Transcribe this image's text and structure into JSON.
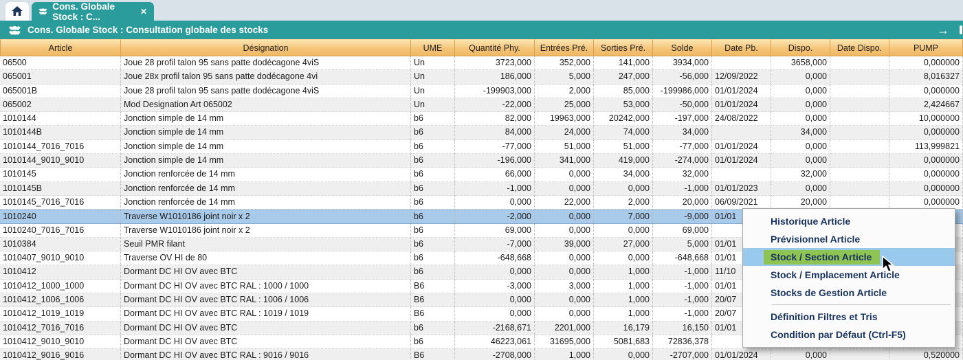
{
  "colors": {
    "teal_accent": "#2a9c9c",
    "tabstrip_bg": "#d9e2e9",
    "header_orange": "#f4c478",
    "row_alt": "#efefef",
    "selected_row_blue": "#a9cbe9",
    "menu_hover_blue": "#9ac9ee",
    "menu_highlight_green": "#8ec454",
    "menu_text_navy": "#17325f"
  },
  "tabs": {
    "home_icon": "home-icon",
    "active_tab": {
      "label": "Cons. Globale Stock : C...",
      "close_glyph": "✕"
    }
  },
  "titlebar": {
    "title": "Cons. Globale Stock : Consultation globale des stocks",
    "arrow_glyph": "→"
  },
  "table": {
    "columns": [
      {
        "key": "article",
        "label": "Article",
        "align": "left"
      },
      {
        "key": "designation",
        "label": "Désignation",
        "align": "left"
      },
      {
        "key": "ume",
        "label": "UME",
        "align": "left"
      },
      {
        "key": "qty_phy",
        "label": "Quantité Phy.",
        "align": "right"
      },
      {
        "key": "entrees",
        "label": "Entrées Pré.",
        "align": "right"
      },
      {
        "key": "sorties",
        "label": "Sorties Pré.",
        "align": "right"
      },
      {
        "key": "solde",
        "label": "Solde",
        "align": "right"
      },
      {
        "key": "date_pb",
        "label": "Date Pb.",
        "align": "left"
      },
      {
        "key": "dispo",
        "label": "Dispo.",
        "align": "right"
      },
      {
        "key": "date_dispo",
        "label": "Date Dispo.",
        "align": "left"
      },
      {
        "key": "pump",
        "label": "PUMP",
        "align": "right"
      }
    ],
    "rows": [
      {
        "article": "06500",
        "designation": "Joue 28 profil talon 95 sans patte dodécagone 4viS",
        "ume": "Un",
        "qty_phy": "3723,000",
        "entrees": "352,000",
        "sorties": "141,000",
        "solde": "3934,000",
        "date_pb": "",
        "dispo": "3658,000",
        "date_dispo": "",
        "pump": "0,000000"
      },
      {
        "article": "065001",
        "designation": "Joue 28x profil talon 95 sans patte dodécagone 4vi",
        "ume": "Un",
        "qty_phy": "186,000",
        "entrees": "5,000",
        "sorties": "247,000",
        "solde": "-56,000",
        "date_pb": "12/09/2022",
        "dispo": "0,000",
        "date_dispo": "",
        "pump": "8,016327"
      },
      {
        "article": "065001B",
        "designation": "Joue 28 profil talon 95 sans patte dodécagone 4viS",
        "ume": "Un",
        "qty_phy": "-199903,000",
        "entrees": "2,000",
        "sorties": "85,000",
        "solde": "-199986,000",
        "date_pb": "01/01/2024",
        "dispo": "0,000",
        "date_dispo": "",
        "pump": "0,000000"
      },
      {
        "article": "065002",
        "designation": "Mod Designation Art 065002",
        "ume": "Un",
        "qty_phy": "-22,000",
        "entrees": "25,000",
        "sorties": "53,000",
        "solde": "-50,000",
        "date_pb": "01/01/2024",
        "dispo": "0,000",
        "date_dispo": "",
        "pump": "2,424667"
      },
      {
        "article": "1010144",
        "designation": "Jonction simple de 14 mm",
        "ume": "b6",
        "qty_phy": "82,000",
        "entrees": "19963,000",
        "sorties": "20242,000",
        "solde": "-197,000",
        "date_pb": "24/08/2022",
        "dispo": "0,000",
        "date_dispo": "",
        "pump": "10,000000"
      },
      {
        "article": "1010144B",
        "designation": "Jonction simple de 14 mm",
        "ume": "b6",
        "qty_phy": "84,000",
        "entrees": "24,000",
        "sorties": "74,000",
        "solde": "34,000",
        "date_pb": "",
        "dispo": "34,000",
        "date_dispo": "",
        "pump": "0,000000"
      },
      {
        "article": "1010144_7016_7016",
        "designation": "Jonction simple de 14 mm",
        "ume": "b6",
        "qty_phy": "-77,000",
        "entrees": "51,000",
        "sorties": "51,000",
        "solde": "-77,000",
        "date_pb": "01/01/2024",
        "dispo": "0,000",
        "date_dispo": "",
        "pump": "113,999821"
      },
      {
        "article": "1010144_9010_9010",
        "designation": "Jonction simple de 14 mm",
        "ume": "b6",
        "qty_phy": "-196,000",
        "entrees": "341,000",
        "sorties": "419,000",
        "solde": "-274,000",
        "date_pb": "01/01/2024",
        "dispo": "0,000",
        "date_dispo": "",
        "pump": "0,000000"
      },
      {
        "article": "1010145",
        "designation": "Jonction renforcée de 14 mm",
        "ume": "b6",
        "qty_phy": "66,000",
        "entrees": "0,000",
        "sorties": "34,000",
        "solde": "32,000",
        "date_pb": "",
        "dispo": "32,000",
        "date_dispo": "",
        "pump": "0,000000"
      },
      {
        "article": "1010145B",
        "designation": "Jonction renforcée de 14 mm",
        "ume": "b6",
        "qty_phy": "-1,000",
        "entrees": "0,000",
        "sorties": "0,000",
        "solde": "-1,000",
        "date_pb": "01/01/2023",
        "dispo": "0,000",
        "date_dispo": "",
        "pump": "0,000000"
      },
      {
        "article": "1010145_7016_7016",
        "designation": "Jonction renforcée de 14 mm",
        "ume": "b6",
        "qty_phy": "0,000",
        "entrees": "22,000",
        "sorties": "2,000",
        "solde": "20,000",
        "date_pb": "06/09/2021",
        "dispo": "20,000",
        "date_dispo": "",
        "pump": "0,000000"
      },
      {
        "selected": true,
        "article": "1010240",
        "designation": "Traverse W1010186 joint noir x 2",
        "ume": "b6",
        "qty_phy": "-2,000",
        "entrees": "0,000",
        "sorties": "7,000",
        "solde": "-9,000",
        "date_pb": "01/01",
        "dispo": "",
        "date_dispo": "",
        "pump": ""
      },
      {
        "article": "1010240_7016_7016",
        "designation": "Traverse W1010186 joint noir x 2",
        "ume": "b6",
        "qty_phy": "69,000",
        "entrees": "0,000",
        "sorties": "0,000",
        "solde": "69,000",
        "date_pb": "",
        "dispo": "",
        "date_dispo": "",
        "pump": ""
      },
      {
        "article": "1010384",
        "designation": "Seuil PMR filant",
        "ume": "b6",
        "qty_phy": "-7,000",
        "entrees": "39,000",
        "sorties": "27,000",
        "solde": "5,000",
        "date_pb": "01/01",
        "dispo": "",
        "date_dispo": "",
        "pump": ""
      },
      {
        "article": "1010407_9010_9010",
        "designation": "Traverse OV HI de 80",
        "ume": "b6",
        "qty_phy": "-648,668",
        "entrees": "0,000",
        "sorties": "0,000",
        "solde": "-648,668",
        "date_pb": "01/01",
        "dispo": "",
        "date_dispo": "",
        "pump": ""
      },
      {
        "article": "1010412",
        "designation": "Dormant DC HI OV avec BTC",
        "ume": "b6",
        "qty_phy": "0,000",
        "entrees": "0,000",
        "sorties": "1,000",
        "solde": "-1,000",
        "date_pb": "11/10",
        "dispo": "",
        "date_dispo": "",
        "pump": ""
      },
      {
        "article": "1010412_1000_1000",
        "designation": "Dormant DC HI OV avec BTC RAL : 1000 / 1000",
        "ume": "B6",
        "qty_phy": "-3,000",
        "entrees": "3,000",
        "sorties": "1,000",
        "solde": "-1,000",
        "date_pb": "01/01",
        "dispo": "",
        "date_dispo": "",
        "pump": ""
      },
      {
        "article": "1010412_1006_1006",
        "designation": "Dormant DC HI OV avec BTC RAL : 1006 / 1006",
        "ume": "B6",
        "qty_phy": "0,000",
        "entrees": "0,000",
        "sorties": "1,000",
        "solde": "-1,000",
        "date_pb": "20/07",
        "dispo": "",
        "date_dispo": "",
        "pump": ""
      },
      {
        "article": "1010412_1019_1019",
        "designation": "Dormant DC HI OV avec BTC RAL : 1019 / 1019",
        "ume": "B6",
        "qty_phy": "0,000",
        "entrees": "0,000",
        "sorties": "1,000",
        "solde": "-1,000",
        "date_pb": "20/07",
        "dispo": "",
        "date_dispo": "",
        "pump": ""
      },
      {
        "article": "1010412_7016_7016",
        "designation": "Dormant DC HI OV avec BTC",
        "ume": "b6",
        "qty_phy": "-2168,671",
        "entrees": "2201,000",
        "sorties": "16,179",
        "solde": "16,150",
        "date_pb": "01/01",
        "dispo": "",
        "date_dispo": "",
        "pump": ""
      },
      {
        "article": "1010412_9010_9010",
        "designation": "Dormant DC HI OV avec BTC",
        "ume": "b6",
        "qty_phy": "46223,061",
        "entrees": "31695,000",
        "sorties": "5081,683",
        "solde": "72836,378",
        "date_pb": "",
        "dispo": "",
        "date_dispo": "",
        "pump": ""
      },
      {
        "article": "1010412_9016_9016",
        "designation": "Dormant DC HI OV avec BTC RAL : 9016 / 9016",
        "ume": "B6",
        "qty_phy": "-2708,000",
        "entrees": "1,000",
        "sorties": "0,000",
        "solde": "-2707,000",
        "date_pb": "01/01/2024",
        "dispo": "0,000",
        "date_dispo": "",
        "pump": "0,520000"
      }
    ]
  },
  "context_menu": {
    "items": [
      {
        "label": "Historique Article"
      },
      {
        "label": "Prévisionnel Article"
      },
      {
        "label": "Stock / Section Article",
        "hovered": true,
        "green": true
      },
      {
        "label": "Stock / Emplacement Article"
      },
      {
        "label": "Stocks de Gestion Article"
      },
      {
        "separator": true
      },
      {
        "label": "Définition Filtres et Tris"
      },
      {
        "label": "Condition par Défaut (Ctrl-F5)"
      }
    ]
  }
}
